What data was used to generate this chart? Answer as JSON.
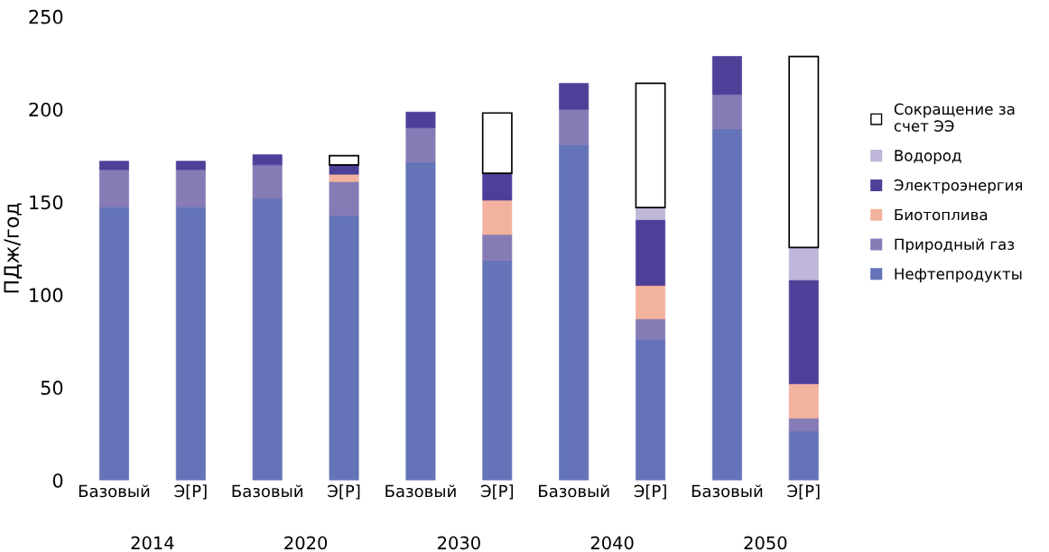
{
  "chart_data": {
    "type": "bar",
    "stacked": true,
    "ylabel": "ПДж/год",
    "categories": [
      "Базовый",
      "Э[Р]",
      "Базовый",
      "Э[Р]",
      "Базовый",
      "Э[Р]",
      "Базовый",
      "Э[Р]",
      "Базовый",
      "Э[Р]"
    ],
    "annotations": [
      "2014",
      "2020",
      "2030",
      "2040",
      "2050"
    ],
    "ylim": [
      0,
      250
    ],
    "yticks": [
      0,
      50,
      100,
      150,
      200,
      250
    ],
    "grid": false,
    "legend": "right",
    "series": [
      {
        "name": "Нефтепродукты",
        "color": "#6574b8",
        "values": [
          147.5,
          147.5,
          152,
          143,
          171.5,
          118.5,
          181,
          76,
          189.5,
          26.5
        ]
      },
      {
        "name": "Природный газ",
        "color": "#877bb6",
        "values": [
          20,
          20,
          18,
          18,
          18.5,
          14,
          19,
          11,
          18.5,
          7
        ]
      },
      {
        "name": "Биотоплива",
        "color": "#f2b29e",
        "values": [
          null,
          null,
          null,
          4,
          null,
          18.5,
          null,
          18,
          null,
          18.5
        ]
      },
      {
        "name": "Электроэнергия",
        "color": "#4e3f98",
        "values": [
          4.5,
          4.5,
          5.5,
          5,
          8.5,
          14.5,
          14,
          35.5,
          20.5,
          56
        ]
      },
      {
        "name": "Водород",
        "color": "#c0b6d9",
        "values": [
          null,
          null,
          null,
          null,
          null,
          null,
          null,
          6.5,
          null,
          17.5
        ]
      },
      {
        "name": "Сокращение за\nсчет ЭЭ",
        "color": "#ffffff",
        "values": [
          null,
          null,
          null,
          5,
          null,
          32.5,
          null,
          67,
          null,
          103
        ]
      }
    ]
  }
}
